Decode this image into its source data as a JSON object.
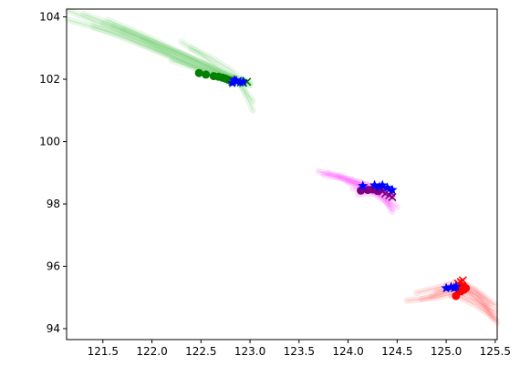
{
  "chart_data": {
    "type": "scatter",
    "title": "",
    "xlabel": "",
    "ylabel": "",
    "xlim": [
      121.13,
      125.52
    ],
    "ylim": [
      93.65,
      104.25
    ],
    "grid": false,
    "legend": "none",
    "x_ticks": [
      121.5,
      122.0,
      122.5,
      123.0,
      123.5,
      124.0,
      124.5,
      125.0,
      125.5
    ],
    "y_ticks": [
      94,
      96,
      98,
      100,
      102,
      104
    ],
    "x_tick_labels": [
      "121.5",
      "122.0",
      "122.5",
      "123.0",
      "123.5",
      "124.0",
      "124.5",
      "125.0",
      "125.5"
    ],
    "y_tick_labels": [
      "94",
      "96",
      "98",
      "100",
      "102",
      "104"
    ],
    "colors": {
      "green": "#008000",
      "purple": "#800080",
      "red": "#ff0000",
      "blue": "#0000ff",
      "green_trail": "#7fd47f",
      "magenta_trail": "#ff66ff",
      "red_trail": "#ff8080"
    },
    "series": [
      {
        "color": "#008000",
        "marker": "circle",
        "x": [
          122.48,
          122.55,
          122.63,
          122.68,
          122.72,
          122.75,
          122.78,
          122.81
        ],
        "y": [
          102.2,
          102.15,
          102.1,
          102.08,
          102.05,
          102.02,
          101.98,
          101.95
        ]
      },
      {
        "color": "#008000",
        "marker": "x",
        "x": [
          122.82,
          122.88,
          122.93,
          122.97
        ],
        "y": [
          101.92,
          101.95,
          101.88,
          101.92
        ]
      },
      {
        "color": "#0000ff",
        "marker": "star",
        "x": [
          122.82,
          122.86,
          122.9,
          122.93,
          122.84
        ],
        "y": [
          101.88,
          101.95,
          101.9,
          101.92,
          101.97
        ]
      },
      {
        "color": "#800080",
        "marker": "circle",
        "x": [
          124.13,
          124.2,
          124.25,
          124.3,
          124.32,
          124.28
        ],
        "y": [
          98.43,
          98.45,
          98.47,
          98.42,
          98.48,
          98.5
        ]
      },
      {
        "color": "#800080",
        "marker": "x",
        "x": [
          124.38,
          124.42,
          124.45,
          124.35,
          124.44
        ],
        "y": [
          98.33,
          98.28,
          98.22,
          98.4,
          98.36
        ]
      },
      {
        "color": "#0000ff",
        "marker": "star",
        "x": [
          124.15,
          124.27,
          124.32,
          124.35,
          124.4,
          124.45
        ],
        "y": [
          98.58,
          98.6,
          98.55,
          98.6,
          98.52,
          98.45
        ]
      },
      {
        "color": "#ff0000",
        "marker": "circle",
        "x": [
          125.1,
          125.15,
          125.18,
          125.17,
          125.2,
          125.13
        ],
        "y": [
          95.05,
          95.2,
          95.25,
          95.35,
          95.3,
          95.28
        ]
      },
      {
        "color": "#ff0000",
        "marker": "x",
        "x": [
          125.15,
          125.12,
          125.17
        ],
        "y": [
          95.5,
          95.45,
          95.55
        ]
      },
      {
        "color": "#0000ff",
        "marker": "star",
        "x": [
          125.0,
          125.05,
          125.08,
          125.1
        ],
        "y": [
          95.3,
          95.33,
          95.3,
          95.35
        ]
      }
    ],
    "trail_bundles": [
      {
        "color": "#7fd47f",
        "opacity": 0.18,
        "paths": [
          [
            [
              121.15,
              104.2
            ],
            [
              121.6,
              103.6
            ],
            [
              122.1,
              102.9
            ],
            [
              122.5,
              102.3
            ],
            [
              122.9,
              101.95
            ]
          ],
          [
            [
              121.3,
              104.1
            ],
            [
              121.8,
              103.5
            ],
            [
              122.3,
              102.8
            ],
            [
              122.7,
              102.2
            ],
            [
              122.95,
              101.9
            ]
          ],
          [
            [
              121.5,
              103.8
            ],
            [
              121.9,
              103.3
            ],
            [
              122.3,
              102.6
            ],
            [
              122.7,
              102.1
            ],
            [
              122.95,
              101.95
            ]
          ],
          [
            [
              121.6,
              103.7
            ],
            [
              122.0,
              103.2
            ],
            [
              122.4,
              102.7
            ],
            [
              122.8,
              102.1
            ],
            [
              123.0,
              101.8
            ]
          ],
          [
            [
              121.15,
              103.9
            ],
            [
              121.7,
              103.4
            ],
            [
              122.2,
              102.7
            ],
            [
              122.6,
              102.2
            ],
            [
              122.9,
              101.9
            ]
          ],
          [
            [
              121.4,
              103.7
            ],
            [
              121.9,
              103.1
            ],
            [
              122.4,
              102.5
            ],
            [
              122.8,
              102.0
            ],
            [
              123.0,
              101.85
            ]
          ],
          [
            [
              122.3,
              103.2
            ],
            [
              122.5,
              102.8
            ],
            [
              122.7,
              102.3
            ],
            [
              122.9,
              101.95
            ]
          ],
          [
            [
              122.4,
              103.0
            ],
            [
              122.6,
              102.7
            ],
            [
              122.8,
              102.3
            ],
            [
              122.95,
              101.9
            ]
          ],
          [
            [
              121.7,
              103.6
            ],
            [
              122.1,
              103.0
            ],
            [
              122.5,
              102.5
            ],
            [
              122.85,
              102.0
            ],
            [
              123.03,
              101.3
            ]
          ],
          [
            [
              121.9,
              103.3
            ],
            [
              122.3,
              102.8
            ],
            [
              122.6,
              102.4
            ],
            [
              122.9,
              101.9
            ],
            [
              123.03,
              101.0
            ]
          ],
          [
            [
              122.2,
              102.6
            ],
            [
              122.5,
              102.3
            ],
            [
              122.8,
              102.05
            ],
            [
              123.0,
              101.9
            ]
          ],
          [
            [
              121.55,
              103.9
            ],
            [
              122.0,
              103.3
            ],
            [
              122.45,
              102.6
            ],
            [
              122.85,
              102.0
            ]
          ]
        ]
      },
      {
        "color": "#ff66ff",
        "opacity": 0.2,
        "paths": [
          [
            [
              123.7,
              99.05
            ],
            [
              123.9,
              98.85
            ],
            [
              124.1,
              98.65
            ],
            [
              124.3,
              98.5
            ],
            [
              124.45,
              98.3
            ]
          ],
          [
            [
              123.75,
              98.95
            ],
            [
              124.0,
              98.8
            ],
            [
              124.2,
              98.6
            ],
            [
              124.4,
              98.4
            ]
          ],
          [
            [
              123.8,
              99.0
            ],
            [
              124.05,
              98.75
            ],
            [
              124.25,
              98.55
            ],
            [
              124.45,
              98.2
            ]
          ],
          [
            [
              124.0,
              98.7
            ],
            [
              124.2,
              98.5
            ],
            [
              124.35,
              98.25
            ],
            [
              124.45,
              97.85
            ]
          ],
          [
            [
              124.1,
              98.3
            ],
            [
              124.25,
              98.35
            ],
            [
              124.38,
              98.1
            ],
            [
              124.45,
              97.75
            ]
          ],
          [
            [
              123.9,
              98.9
            ],
            [
              124.15,
              98.55
            ],
            [
              124.3,
              98.35
            ],
            [
              124.42,
              98.0
            ]
          ],
          [
            [
              124.05,
              98.5
            ],
            [
              124.2,
              98.45
            ],
            [
              124.35,
              98.3
            ],
            [
              124.5,
              97.9
            ]
          ]
        ]
      },
      {
        "color": "#ff8080",
        "opacity": 0.2,
        "paths": [
          [
            [
              124.75,
              94.95
            ],
            [
              124.95,
              95.1
            ],
            [
              125.1,
              95.25
            ],
            [
              125.3,
              95.1
            ],
            [
              125.45,
              94.5
            ]
          ],
          [
            [
              124.85,
              95.05
            ],
            [
              125.0,
              95.25
            ],
            [
              125.15,
              95.35
            ],
            [
              125.35,
              95.0
            ],
            [
              125.5,
              94.3
            ]
          ],
          [
            [
              124.6,
              94.9
            ],
            [
              124.9,
              95.0
            ],
            [
              125.1,
              95.15
            ],
            [
              125.3,
              94.9
            ],
            [
              125.5,
              94.55
            ]
          ],
          [
            [
              125.0,
              95.4
            ],
            [
              125.15,
              95.45
            ],
            [
              125.3,
              95.2
            ],
            [
              125.45,
              94.8
            ]
          ],
          [
            [
              124.9,
              95.2
            ],
            [
              125.05,
              95.3
            ],
            [
              125.2,
              95.25
            ],
            [
              125.4,
              94.65
            ],
            [
              125.52,
              94.2
            ]
          ],
          [
            [
              125.05,
              95.05
            ],
            [
              125.15,
              95.0
            ],
            [
              125.3,
              94.75
            ],
            [
              125.48,
              94.35
            ]
          ],
          [
            [
              124.7,
              95.15
            ],
            [
              124.95,
              95.35
            ],
            [
              125.15,
              95.5
            ],
            [
              125.3,
              95.25
            ],
            [
              125.5,
              94.75
            ]
          ]
        ]
      }
    ]
  }
}
